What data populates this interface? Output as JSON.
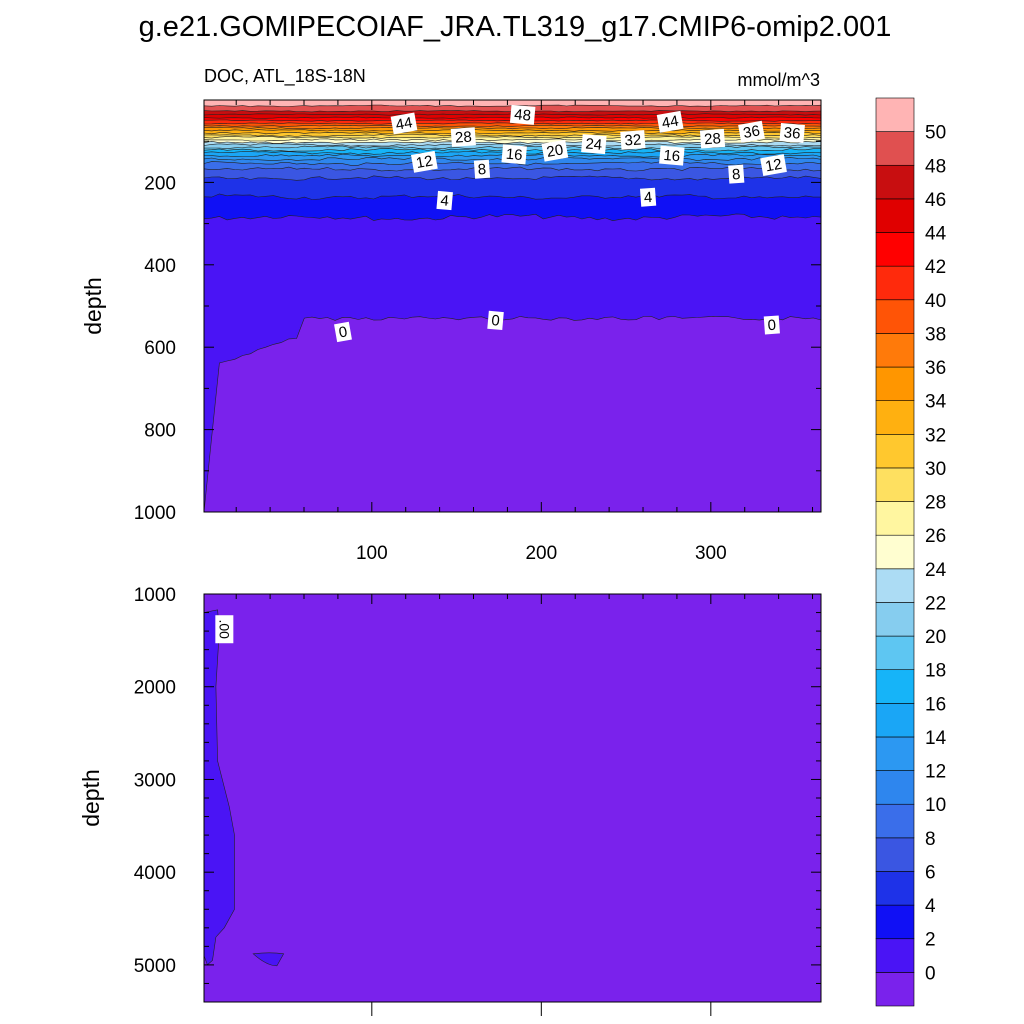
{
  "title": "g.e21.GOMIPECOIAF_JRA.TL319_g17.CMIP6-omip2.001",
  "chart_data": {
    "type": "heatmap",
    "variable_label": "DOC, ATL_18S-18N",
    "units": "mmol/m^3",
    "panels": [
      {
        "id": "upper",
        "ylabel": "depth",
        "xlim": [
          1,
          365
        ],
        "ylim": [
          0,
          1000
        ],
        "y_inverted": true,
        "xticks": [
          100,
          200,
          300
        ],
        "xtick_labels": [
          "100",
          "200",
          "300"
        ],
        "yticks": [
          200,
          400,
          600,
          800,
          1000
        ],
        "ytick_labels": [
          "200",
          "400",
          "600",
          "800",
          "1000"
        ],
        "contour_levels_depth": [
          {
            "level": 50,
            "depth": 14
          },
          {
            "level": 48,
            "depth": 27
          },
          {
            "level": 46,
            "depth": 35
          },
          {
            "level": 44,
            "depth": 43
          },
          {
            "level": 42,
            "depth": 50
          },
          {
            "level": 40,
            "depth": 57
          },
          {
            "level": 38,
            "depth": 63
          },
          {
            "level": 36,
            "depth": 68
          },
          {
            "level": 34,
            "depth": 74
          },
          {
            "level": 32,
            "depth": 80
          },
          {
            "level": 30,
            "depth": 86
          },
          {
            "level": 28,
            "depth": 91
          },
          {
            "level": 26,
            "depth": 97
          },
          {
            "level": 24,
            "depth": 103
          },
          {
            "level": 22,
            "depth": 109
          },
          {
            "level": 20,
            "depth": 115
          },
          {
            "level": 18,
            "depth": 121
          },
          {
            "level": 16,
            "depth": 128
          },
          {
            "level": 14,
            "depth": 135
          },
          {
            "level": 12,
            "depth": 143
          },
          {
            "level": 10,
            "depth": 154
          },
          {
            "level": 8,
            "depth": 168
          },
          {
            "level": 6,
            "depth": 190
          },
          {
            "level": 4,
            "depth": 235
          },
          {
            "level": 2,
            "depth": 285
          },
          {
            "level": 0,
            "depth": 540
          }
        ],
        "contour_labels": [
          {
            "text": "44",
            "x": 119,
            "depth": 57
          },
          {
            "text": "48",
            "x": 189,
            "depth": 36
          },
          {
            "text": "28",
            "x": 154,
            "depth": 90
          },
          {
            "text": "12",
            "x": 131,
            "depth": 150
          },
          {
            "text": "16",
            "x": 184,
            "depth": 132
          },
          {
            "text": "8",
            "x": 165,
            "depth": 168
          },
          {
            "text": "20",
            "x": 208,
            "depth": 123
          },
          {
            "text": "24",
            "x": 231,
            "depth": 107
          },
          {
            "text": "32",
            "x": 254,
            "depth": 97
          },
          {
            "text": "44",
            "x": 276,
            "depth": 53
          },
          {
            "text": "16",
            "x": 277,
            "depth": 135
          },
          {
            "text": "28",
            "x": 301,
            "depth": 94
          },
          {
            "text": "36",
            "x": 324,
            "depth": 77
          },
          {
            "text": "36",
            "x": 348,
            "depth": 80
          },
          {
            "text": "8",
            "x": 315,
            "depth": 180
          },
          {
            "text": "12",
            "x": 337,
            "depth": 158
          },
          {
            "text": "4",
            "x": 143,
            "depth": 244
          },
          {
            "text": "4",
            "x": 263,
            "depth": 236
          },
          {
            "text": "0",
            "x": 83,
            "depth": 563
          },
          {
            "text": "0",
            "x": 173,
            "depth": 535
          },
          {
            "text": "0",
            "x": 336,
            "depth": 546
          }
        ]
      },
      {
        "id": "lower",
        "ylabel": "depth",
        "xlim": [
          1,
          365
        ],
        "ylim": [
          1000,
          5400
        ],
        "y_inverted": true,
        "yticks": [
          1000,
          2000,
          3000,
          4000,
          5000
        ],
        "ytick_labels": [
          "1000",
          "2000",
          "3000",
          "4000",
          "5000"
        ],
        "contour_labels": [
          {
            "text": ".00",
            "x": 13,
            "depth": 1380
          }
        ]
      }
    ],
    "colorbar": {
      "levels": [
        0,
        2,
        4,
        6,
        8,
        10,
        12,
        14,
        16,
        18,
        20,
        22,
        24,
        26,
        28,
        30,
        32,
        34,
        36,
        38,
        40,
        42,
        44,
        46,
        48,
        50
      ],
      "labels": [
        "0",
        "2",
        "4",
        "6",
        "8",
        "10",
        "12",
        "14",
        "16",
        "18",
        "20",
        "22",
        "24",
        "26",
        "28",
        "30",
        "32",
        "34",
        "36",
        "38",
        "40",
        "42",
        "44",
        "46",
        "48",
        "50"
      ],
      "colors": [
        "#7a22ec",
        "#4a14f5",
        "#1010f5",
        "#1e32e8",
        "#3a56e2",
        "#3a6eea",
        "#2e86ee",
        "#2c98f2",
        "#1aa6f6",
        "#16b4f8",
        "#5ec6f2",
        "#86cdef",
        "#acdcf4",
        "#fffed0",
        "#fff6a0",
        "#fee060",
        "#ffc82e",
        "#ffb010",
        "#ff9600",
        "#ff7a0a",
        "#ff5406",
        "#ff2a0c",
        "#ff0000",
        "#e00000",
        "#c80e10",
        "#e05050",
        "#ffb4b4"
      ]
    }
  }
}
